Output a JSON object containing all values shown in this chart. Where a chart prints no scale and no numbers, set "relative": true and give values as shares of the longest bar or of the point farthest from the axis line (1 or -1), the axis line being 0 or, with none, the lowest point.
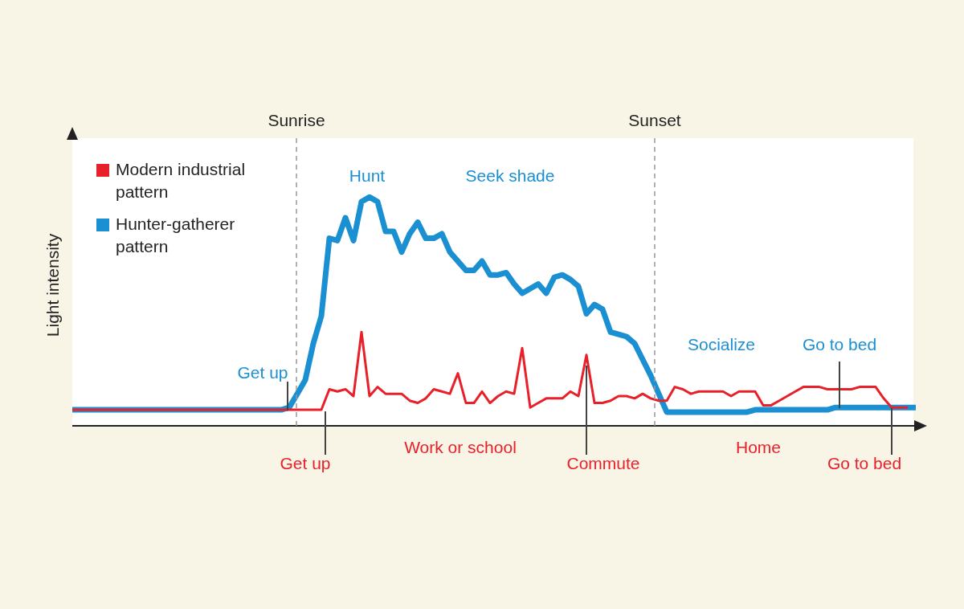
{
  "chart_data": {
    "type": "line",
    "relative": true,
    "ylabel": "Light intensity",
    "legend": "top left",
    "categories": [
      null,
      null,
      null,
      null,
      null,
      null,
      null,
      null,
      null,
      null,
      null,
      null,
      null,
      null,
      null,
      null,
      null,
      null,
      null,
      null,
      null,
      null,
      null,
      null,
      null,
      null,
      null,
      null,
      null,
      null,
      null,
      null,
      null,
      null,
      null,
      null,
      null,
      null,
      null,
      null,
      null,
      null,
      null,
      null,
      null,
      null,
      null,
      null,
      null,
      null,
      null,
      null,
      null,
      null,
      null,
      null,
      null,
      null,
      null,
      null,
      null,
      null,
      null,
      null,
      null,
      null,
      null,
      null,
      null,
      null,
      null,
      null,
      null,
      null,
      null,
      null,
      null,
      null,
      null,
      null,
      null,
      null,
      null,
      null,
      null,
      null,
      null,
      null,
      null,
      null,
      null,
      null,
      null,
      null,
      null,
      null,
      null,
      null,
      null,
      null,
      null,
      null,
      null,
      null,
      null,
      null
    ],
    "series": [
      {
        "name": "Modern industrial pattern",
        "color": "#e8202a",
        "values": [
          0.07,
          0.07,
          0.07,
          0.07,
          0.07,
          0.07,
          0.07,
          0.07,
          0.07,
          0.07,
          0.07,
          0.07,
          0.07,
          0.07,
          0.07,
          0.07,
          0.07,
          0.07,
          0.07,
          0.07,
          0.07,
          0.07,
          0.07,
          0.07,
          0.07,
          0.07,
          0.07,
          0.07,
          0.07,
          0.07,
          0.07,
          0.07,
          0.16,
          0.15,
          0.16,
          0.13,
          0.41,
          0.13,
          0.17,
          0.14,
          0.14,
          0.14,
          0.11,
          0.1,
          0.12,
          0.16,
          0.15,
          0.14,
          0.23,
          0.1,
          0.1,
          0.15,
          0.1,
          0.13,
          0.15,
          0.14,
          0.34,
          0.08,
          0.1,
          0.12,
          0.12,
          0.12,
          0.15,
          0.13,
          0.31,
          0.1,
          0.1,
          0.11,
          0.13,
          0.13,
          0.12,
          0.14,
          0.12,
          0.11,
          0.11,
          0.17,
          0.16,
          0.14,
          0.15,
          0.15,
          0.15,
          0.15,
          0.13,
          0.15,
          0.15,
          0.15,
          0.09,
          0.09,
          0.11,
          0.13,
          0.15,
          0.17,
          0.17,
          0.17,
          0.16,
          0.16,
          0.16,
          0.16,
          0.17,
          0.17,
          0.17,
          0.12,
          0.08,
          0.08,
          0.08,
          null
        ]
      },
      {
        "name": "Hunter-gatherer pattern",
        "color": "#1a8fd1",
        "values": [
          0.07,
          0.07,
          0.07,
          0.07,
          0.07,
          0.07,
          0.07,
          0.07,
          0.07,
          0.07,
          0.07,
          0.07,
          0.07,
          0.07,
          0.07,
          0.07,
          0.07,
          0.07,
          0.07,
          0.07,
          0.07,
          0.07,
          0.07,
          0.07,
          0.07,
          0.07,
          0.07,
          0.08,
          0.14,
          0.2,
          0.36,
          0.48,
          0.82,
          0.81,
          0.91,
          0.81,
          0.98,
          1,
          0.98,
          0.85,
          0.85,
          0.76,
          0.84,
          0.89,
          0.82,
          0.82,
          0.84,
          0.76,
          0.72,
          0.68,
          0.68,
          0.72,
          0.66,
          0.66,
          0.67,
          0.62,
          0.58,
          0.6,
          0.62,
          0.58,
          0.65,
          0.66,
          0.64,
          0.61,
          0.49,
          0.53,
          0.51,
          0.41,
          0.4,
          0.39,
          0.36,
          0.29,
          0.22,
          0.14,
          0.06,
          0.06,
          0.06,
          0.06,
          0.06,
          0.06,
          0.06,
          0.06,
          0.06,
          0.06,
          0.06,
          0.07,
          0.07,
          0.07,
          0.07,
          0.07,
          0.07,
          0.07,
          0.07,
          0.07,
          0.07,
          0.08,
          0.08,
          0.08,
          0.08,
          0.08,
          0.08,
          0.08,
          0.08,
          0.08,
          0.08,
          0.08
        ]
      }
    ],
    "annotations": [
      "Sunrise",
      "Sunset",
      "Hunt",
      "Seek shade",
      "Get up",
      "Socialize",
      "Go to bed",
      "Get up",
      "Work or school",
      "Commute",
      "Home",
      "Go to bed"
    ]
  }
}
